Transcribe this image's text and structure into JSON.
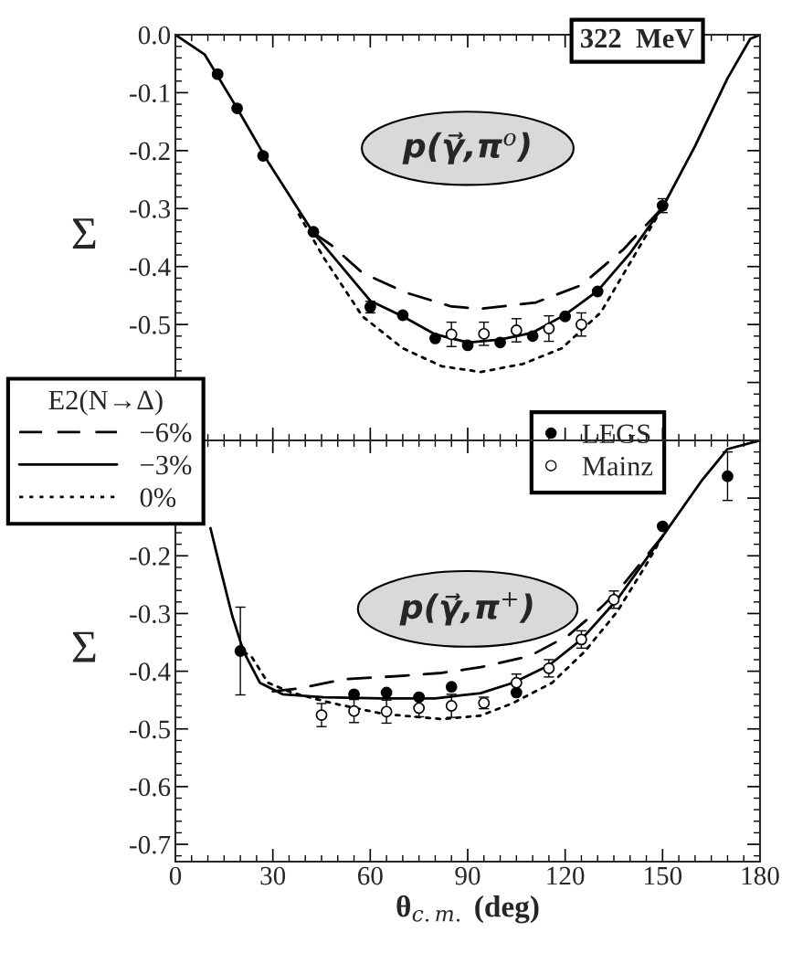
{
  "chart_data": [
    {
      "type": "line",
      "ylabel": "Σ",
      "xlim": [
        0,
        180
      ],
      "ylim": [
        -0.7,
        0.0
      ],
      "xticks": [
        0,
        30,
        60,
        90,
        120,
        150,
        180
      ],
      "yticks": [
        {
          "value": 0.0,
          "label": "0.0"
        },
        -0.1,
        -0.2,
        -0.3,
        -0.4,
        -0.5,
        {
          "value": -0.6,
          "label": null
        },
        {
          "value": -0.7,
          "label": null
        }
      ],
      "tick_labels": "y",
      "grid": false,
      "legend": "bottom left",
      "legend_title": "E2(N→Δ)",
      "annotations": [
        "322  MeV",
        "p(γ⃗,π$^{o}$)"
      ],
      "series": [
        {
          "name": "−6%",
          "color": "#000000",
          "line_style": "dashed",
          "marker": "none",
          "x": [
            42.5,
            48,
            57.6,
            71,
            85,
            94,
            111,
            125,
            138,
            150
          ],
          "values": [
            -0.342,
            -0.363,
            -0.411,
            -0.445,
            -0.469,
            -0.473,
            -0.462,
            -0.432,
            -0.37,
            -0.298
          ]
        },
        {
          "name": "−3%",
          "color": "#000000",
          "line_style": "solid",
          "marker": "none",
          "x": [
            0,
            9,
            19,
            28.5,
            42.5,
            60,
            70,
            80,
            90,
            100,
            110,
            120,
            130,
            140,
            150,
            160,
            170,
            177,
            180
          ],
          "values": [
            0,
            -0.034,
            -0.127,
            -0.219,
            -0.342,
            -0.459,
            -0.486,
            -0.517,
            -0.531,
            -0.526,
            -0.514,
            -0.483,
            -0.442,
            -0.377,
            -0.298,
            -0.192,
            -0.075,
            -0.007,
            0
          ]
        },
        {
          "name": "0%",
          "color": "#000000",
          "line_style": "dotted",
          "marker": "none",
          "x": [
            38,
            45.6,
            57.6,
            70,
            82,
            94,
            107,
            119,
            131,
            141,
            150
          ],
          "values": [
            -0.31,
            -0.384,
            -0.486,
            -0.541,
            -0.572,
            -0.582,
            -0.568,
            -0.541,
            -0.479,
            -0.384,
            -0.298
          ]
        },
        {
          "type": "scatter",
          "color": "#000000",
          "marker": "circle",
          "x": [
            13,
            19,
            27,
            42.5,
            60,
            70,
            80,
            90,
            100,
            110,
            120,
            130,
            150
          ],
          "values": [
            -0.068,
            -0.127,
            -0.209,
            -0.34,
            -0.47,
            -0.484,
            -0.524,
            -0.536,
            -0.531,
            -0.52,
            -0.486,
            -0.443,
            -0.295
          ],
          "errors": [
            null,
            null,
            null,
            null,
            0.01,
            null,
            null,
            null,
            null,
            null,
            null,
            null,
            0.012
          ]
        },
        {
          "type": "scatter",
          "color": "#ffffff",
          "marker": "circle",
          "x": [
            85,
            95,
            105,
            115,
            125
          ],
          "values": [
            -0.517,
            -0.516,
            -0.51,
            -0.507,
            -0.5
          ],
          "errors": [
            0.021,
            0.02,
            0.02,
            0.022,
            0.02
          ]
        }
      ]
    },
    {
      "type": "line",
      "ylabel": "Σ",
      "xlabel": "θ$_{c.m.}$ (deg)",
      "xlim": [
        0,
        180
      ],
      "ylim": [
        -0.73,
        0.0
      ],
      "xticks": [
        0,
        30,
        60,
        90,
        120,
        150,
        180
      ],
      "yticks": [
        {
          "value": 0.0,
          "label": null
        },
        {
          "value": -0.1,
          "label": null
        },
        -0.2,
        -0.3,
        -0.4,
        -0.5,
        -0.6,
        -0.7
      ],
      "grid": false,
      "legend": "top right",
      "annotations": [
        "p(γ⃗,π$^{+}$)"
      ],
      "series": [
        {
          "type": "line",
          "color": "#000000",
          "line_style": "dashed",
          "marker": "none",
          "x": [
            30,
            38,
            52,
            70,
            82,
            94,
            109,
            121,
            131,
            137,
            150
          ],
          "values": [
            -0.435,
            -0.43,
            -0.414,
            -0.408,
            -0.403,
            -0.393,
            -0.374,
            -0.338,
            -0.29,
            -0.256,
            -0.166
          ]
        },
        {
          "type": "line",
          "color": "#000000",
          "line_style": "solid",
          "marker": "none",
          "x": [
            10.8,
            13.8,
            17.5,
            21,
            26,
            33,
            45.6,
            64,
            80,
            94,
            104,
            115,
            125,
            136,
            150,
            162,
            170,
            180
          ],
          "values": [
            -0.152,
            -0.221,
            -0.304,
            -0.366,
            -0.42,
            -0.44,
            -0.445,
            -0.447,
            -0.447,
            -0.438,
            -0.42,
            -0.39,
            -0.345,
            -0.276,
            -0.166,
            -0.07,
            -0.015,
            0
          ]
        },
        {
          "type": "line",
          "color": "#000000",
          "line_style": "dotted",
          "marker": "none",
          "x": [
            21,
            23.6,
            28.5,
            35.8,
            48,
            64,
            82,
            94,
            104,
            116,
            126,
            136,
            145,
            150
          ],
          "values": [
            -0.366,
            -0.376,
            -0.42,
            -0.437,
            -0.455,
            -0.474,
            -0.483,
            -0.477,
            -0.455,
            -0.42,
            -0.366,
            -0.297,
            -0.215,
            -0.166
          ]
        },
        {
          "name": "LEGS",
          "type": "scatter",
          "color": "#000000",
          "marker": "circle",
          "x": [
            20,
            55,
            65,
            75,
            85,
            105,
            150,
            170
          ],
          "values": [
            -0.365,
            -0.44,
            -0.437,
            -0.445,
            -0.427,
            -0.437,
            -0.149,
            -0.062
          ],
          "errors": [
            0.076,
            null,
            null,
            null,
            null,
            null,
            null,
            0.042
          ]
        },
        {
          "name": "Mainz",
          "type": "scatter",
          "color": "#ffffff",
          "marker": "circle",
          "x": [
            45,
            55,
            65,
            75,
            85,
            95,
            105,
            115,
            125,
            135
          ],
          "values": [
            -0.476,
            -0.469,
            -0.47,
            -0.464,
            -0.46,
            -0.455,
            -0.42,
            -0.395,
            -0.345,
            -0.276
          ],
          "errors": [
            0.02,
            0.02,
            0.02,
            0.015,
            0.02,
            0.01,
            0.015,
            0.015,
            0.015,
            0.015
          ]
        }
      ]
    }
  ]
}
